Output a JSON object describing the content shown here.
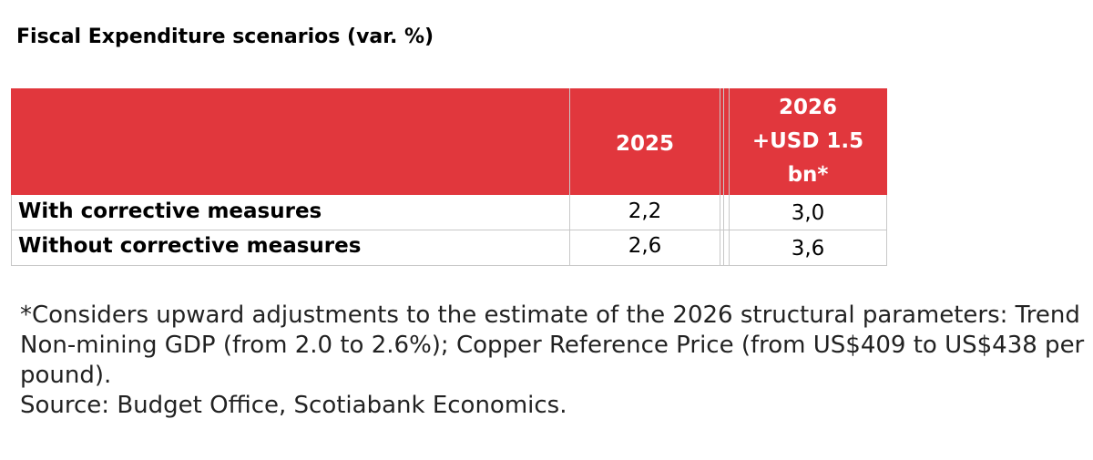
{
  "title": "Fiscal Expenditure scenarios (var. %)",
  "header": {
    "col2025": "2025",
    "col2026": [
      "2026",
      "+USD 1.5",
      "bn*"
    ]
  },
  "rows": [
    {
      "label": "With corrective measures",
      "v2025": "2,2",
      "v2026": "3,0"
    },
    {
      "label": "Without corrective measures",
      "v2025": "2,6",
      "v2026": "3,6"
    }
  ],
  "footnote": "*Considers upward adjustments to the estimate of the 2026 structural parameters: Trend Non-mining GDP (from 2.0 to 2.6%); Copper Reference Price (from US$409 to US$438 per pound).",
  "source": "Source: Budget Office, Scotiabank Economics.",
  "colors": {
    "header_bg": "#e1373d",
    "header_text": "#ffffff"
  }
}
